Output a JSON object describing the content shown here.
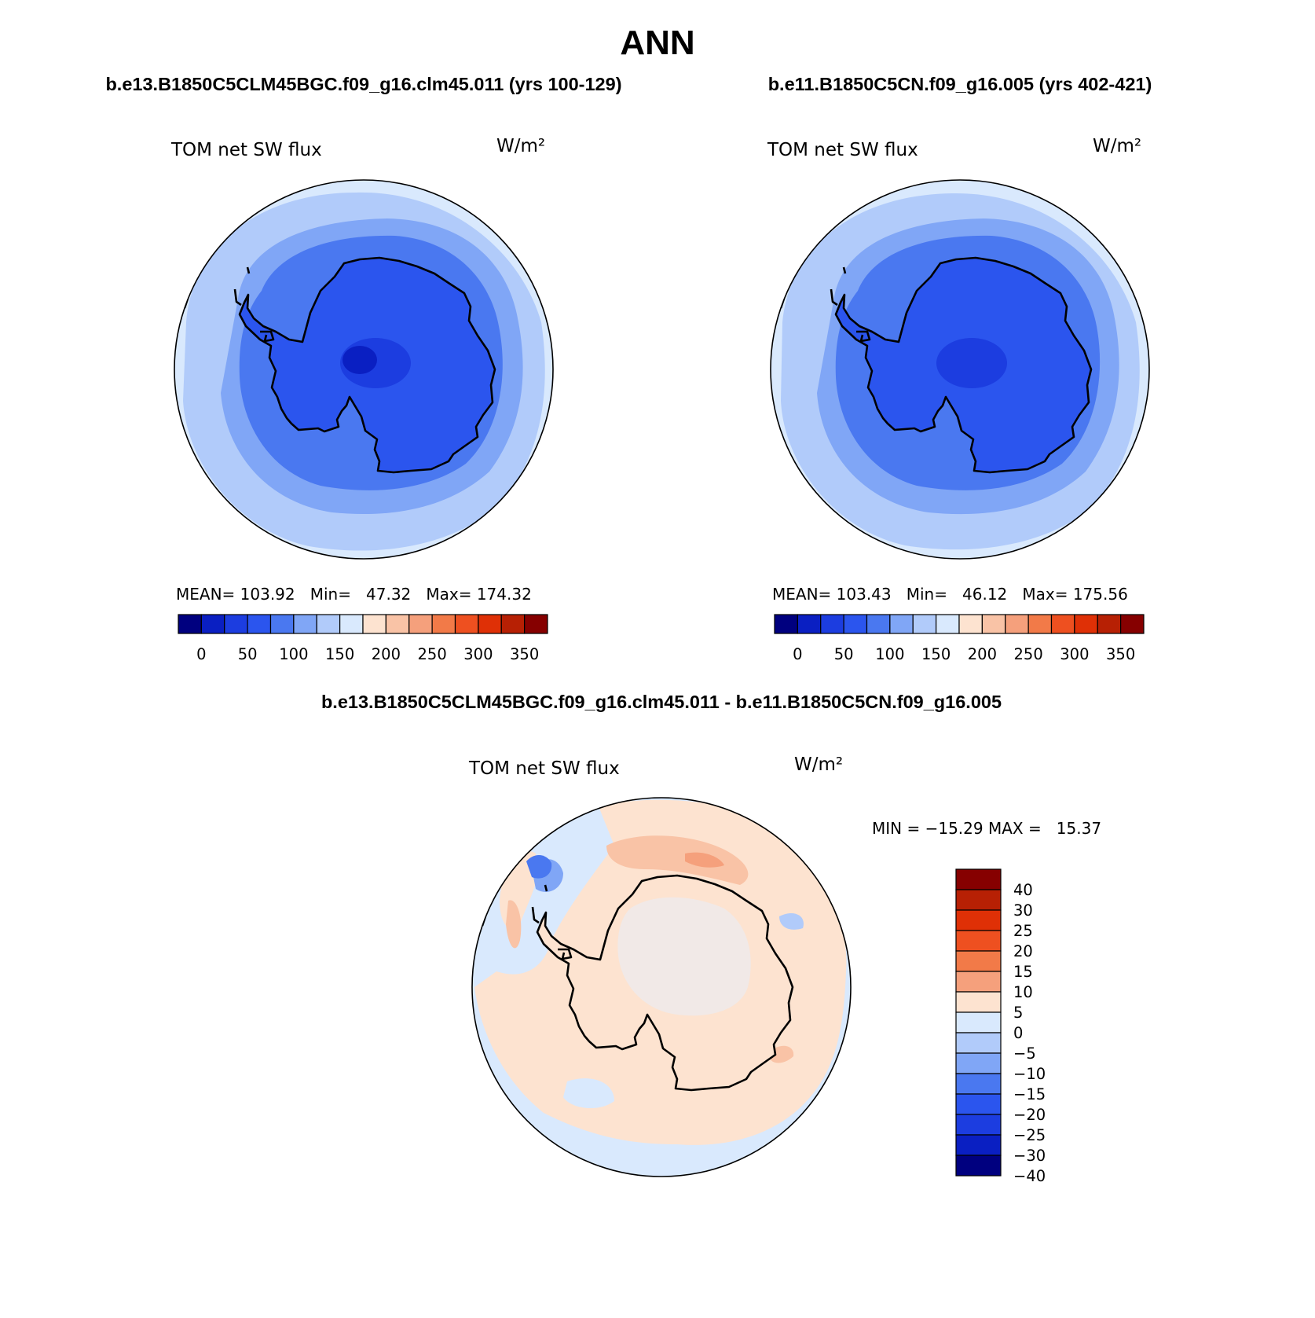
{
  "figure_title": "ANN",
  "panels": [
    {
      "case_title": "b.e13.B1850C5CLM45BGC.f09_g16.clm45.011 (yrs 100-129)",
      "variable": "TOM net SW flux",
      "units": "W/m²",
      "stats_text": "MEAN= 103.92   Min=   47.32   Max= 174.32"
    },
    {
      "case_title": "b.e11.B1850C5CN.f09_g16.005 (yrs 402-421)",
      "variable": "TOM net SW flux",
      "units": "W/m²",
      "stats_text": "MEAN= 103.43   Min=   46.12   Max= 175.56"
    },
    {
      "case_title": "b.e13.B1850C5CLM45BGC.f09_g16.clm45.011 - b.e11.B1850C5CN.f09_g16.005",
      "variable": "TOM net SW flux",
      "units": "W/m²",
      "stats_text": "MIN = −15.29 MAX =   15.37"
    }
  ],
  "colorbar_absolute": {
    "colors": [
      "#00007f",
      "#0a1fc2",
      "#1c3de0",
      "#2b55ee",
      "#4a78f0",
      "#80a6f6",
      "#b1cbfa",
      "#d9e9fd",
      "#fde3d0",
      "#f9c3a6",
      "#f5a07c",
      "#f27a48",
      "#ee5020",
      "#df3006",
      "#b72004",
      "#860000"
    ],
    "labels": [
      "0",
      "50",
      "100",
      "150",
      "200",
      "250",
      "300",
      "350"
    ]
  },
  "colorbar_difference": {
    "colors": [
      "#860000",
      "#b72004",
      "#df3006",
      "#ee5020",
      "#f27a48",
      "#f5a07c",
      "#fde3d0",
      "#d9e9fd",
      "#b1cbfa",
      "#80a6f6",
      "#4a78f0",
      "#2b55ee",
      "#1c3de0",
      "#0a1fc2",
      "#00007f"
    ],
    "labels": [
      "40",
      "30",
      "25",
      "20",
      "15",
      "10",
      "5",
      "0",
      "−5",
      "−10",
      "−15",
      "−20",
      "−25",
      "−30",
      "−40"
    ]
  }
}
